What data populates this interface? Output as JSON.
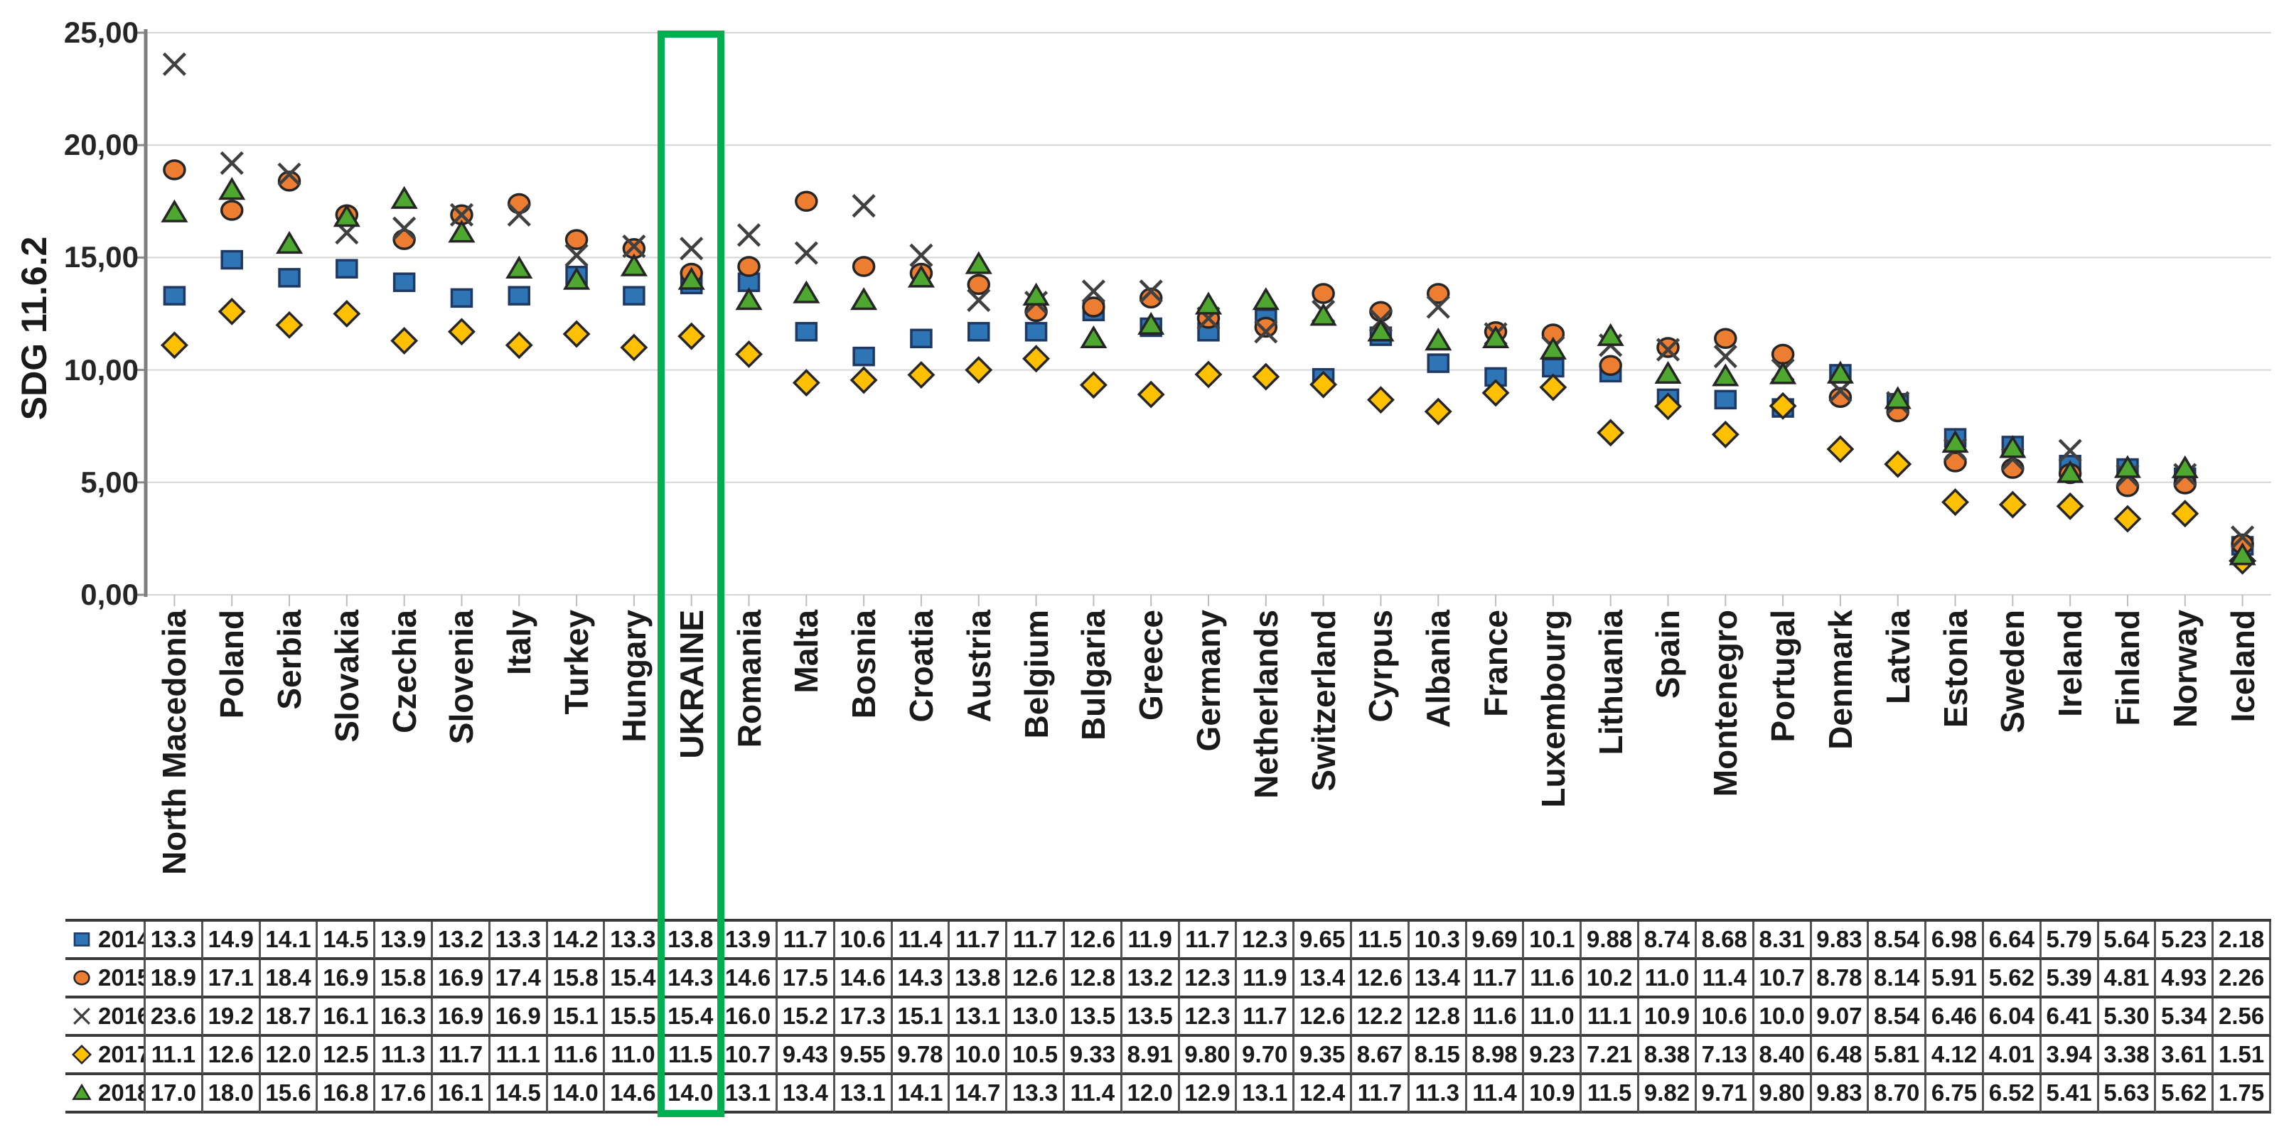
{
  "figure": {
    "y_axis_title": "SDG 11.6.2",
    "y_tick_labels_top_down": [
      "25,00",
      "20,00",
      "15,00",
      "10,00",
      "5,00",
      "0,00"
    ],
    "highlight": {
      "country": "UKRAINE",
      "color": "#00B050"
    }
  },
  "chart_data": {
    "type": "scatter",
    "title": "",
    "xlabel": "",
    "ylabel": "SDG 11.6.2",
    "ylim": [
      0,
      25
    ],
    "y_ticks": [
      0,
      5,
      10,
      15,
      20,
      25
    ],
    "grid": true,
    "legend_position": "table-left",
    "categories": [
      "North Macedonia",
      "Poland",
      "Serbia",
      "Slovakia",
      "Czechia",
      "Slovenia",
      "Italy",
      "Turkey",
      "Hungary",
      "UKRAINE",
      "Romania",
      "Malta",
      "Bosnia",
      "Croatia",
      "Austria",
      "Belgium",
      "Bulgaria",
      "Greece",
      "Germany",
      "Netherlands",
      "Switzerland",
      "Cyrpus",
      "Albania",
      "France",
      "Luxembourg",
      "Lithuania",
      "Spain",
      "Montenegro",
      "Portugal",
      "Denmark",
      "Latvia",
      "Estonia",
      "Sweden",
      "Ireland",
      "Finland",
      "Norway",
      "Iceland"
    ],
    "series": [
      {
        "name": "2014",
        "marker": "square",
        "color": "#2E75B6",
        "values": [
          "13.3",
          "14.9",
          "14.1",
          "14.5",
          "13.9",
          "13.2",
          "13.3",
          "14.2",
          "13.3",
          "13.8",
          "13.9",
          "11.7",
          "10.6",
          "11.4",
          "11.7",
          "11.7",
          "12.6",
          "11.9",
          "11.7",
          "12.3",
          "9.65",
          "11.5",
          "10.3",
          "9.69",
          "10.1",
          "9.88",
          "8.74",
          "8.68",
          "8.31",
          "9.83",
          "8.54",
          "6.98",
          "6.64",
          "5.79",
          "5.64",
          "5.23",
          "2.18"
        ]
      },
      {
        "name": "2015",
        "marker": "circle",
        "color": "#ED7D31",
        "values": [
          "18.9",
          "17.1",
          "18.4",
          "16.9",
          "15.8",
          "16.9",
          "17.4",
          "15.8",
          "15.4",
          "14.3",
          "14.6",
          "17.5",
          "14.6",
          "14.3",
          "13.8",
          "12.6",
          "12.8",
          "13.2",
          "12.3",
          "11.9",
          "13.4",
          "12.6",
          "13.4",
          "11.7",
          "11.6",
          "10.2",
          "11.0",
          "11.4",
          "10.7",
          "8.78",
          "8.14",
          "5.91",
          "5.62",
          "5.39",
          "4.81",
          "4.93",
          "2.26"
        ]
      },
      {
        "name": "2016",
        "marker": "x",
        "color": "#404040",
        "values": [
          "23.6",
          "19.2",
          "18.7",
          "16.1",
          "16.3",
          "16.9",
          "16.9",
          "15.1",
          "15.5",
          "15.4",
          "16.0",
          "15.2",
          "17.3",
          "15.1",
          "13.1",
          "13.0",
          "13.5",
          "13.5",
          "12.3",
          "11.7",
          "12.6",
          "12.2",
          "12.8",
          "11.6",
          "11.0",
          "11.1",
          "10.9",
          "10.6",
          "10.0",
          "9.07",
          "8.54",
          "6.46",
          "6.04",
          "6.41",
          "5.30",
          "5.34",
          "2.56"
        ]
      },
      {
        "name": "2017",
        "marker": "diamond",
        "color": "#FFC000",
        "values": [
          "11.1",
          "12.6",
          "12.0",
          "12.5",
          "11.3",
          "11.7",
          "11.1",
          "11.6",
          "11.0",
          "11.5",
          "10.7",
          "9.43",
          "9.55",
          "9.78",
          "10.0",
          "10.5",
          "9.33",
          "8.91",
          "9.80",
          "9.70",
          "9.35",
          "8.67",
          "8.15",
          "8.98",
          "9.23",
          "7.21",
          "8.38",
          "7.13",
          "8.40",
          "6.48",
          "5.81",
          "4.12",
          "4.01",
          "3.94",
          "3.38",
          "3.61",
          "1.51"
        ]
      },
      {
        "name": "2018",
        "marker": "triangle",
        "color": "#4EA72E",
        "values": [
          "17.0",
          "18.0",
          "15.6",
          "16.8",
          "17.6",
          "16.1",
          "14.5",
          "14.0",
          "14.6",
          "14.0",
          "13.1",
          "13.4",
          "13.1",
          "14.1",
          "14.7",
          "13.3",
          "11.4",
          "12.0",
          "12.9",
          "13.1",
          "12.4",
          "11.7",
          "11.3",
          "11.4",
          "10.9",
          "11.5",
          "9.82",
          "9.71",
          "9.80",
          "9.83",
          "8.70",
          "6.75",
          "6.52",
          "5.41",
          "5.63",
          "5.62",
          "1.75"
        ]
      }
    ]
  }
}
